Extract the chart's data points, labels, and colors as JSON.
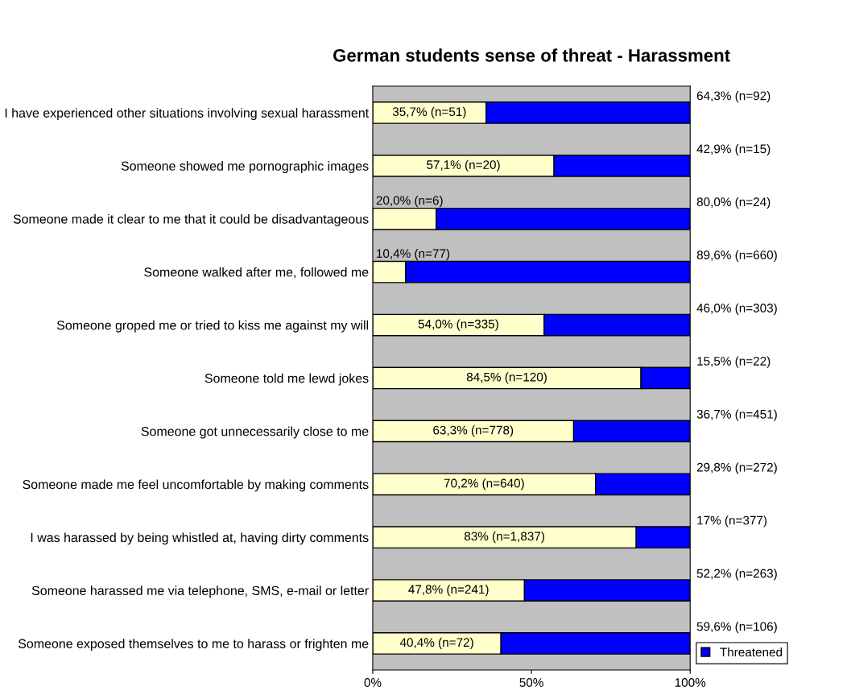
{
  "chart_data": {
    "type": "bar",
    "orientation": "horizontal",
    "stacked": true,
    "title": "German students sense of threat - Harassment",
    "categories": [
      "I have experienced other situations involving sexual harassment",
      "Someone showed me pornographic images",
      "Someone made it clear to me that it could be disadvantageous",
      "Someone walked after me, followed me",
      "Someone groped me or tried to kiss me against my will",
      "Someone told me lewd jokes",
      "Someone got unnecessarily close to me",
      "Someone made me feel uncomfortable by making comments",
      "I was harassed by being whistled at, having dirty comments",
      "Someone harassed me via telephone, SMS, e-mail or letter",
      "Someone exposed themselves to me to harass or frighten me"
    ],
    "series": [
      {
        "color": "#ffffcc",
        "values": [
          35.7,
          57.1,
          20.0,
          10.4,
          54.0,
          84.5,
          63.3,
          70.2,
          83,
          47.8,
          40.4
        ],
        "value_labels": [
          "35,7% (n=51)",
          "57,1% (n=20)",
          "20,0% (n=6)",
          "10,4% (n=77)",
          "54,0% (n=335)",
          "84,5% (n=120)",
          "63,3% (n=778)",
          "70,2% (n=640)",
          "83% (n=1,837)",
          "47,8% (n=241)",
          "40,4% (n=72)"
        ]
      },
      {
        "name": "Threatened",
        "color": "#0000ff",
        "values": [
          64.3,
          42.9,
          80.0,
          89.6,
          46.0,
          15.5,
          36.7,
          29.8,
          17,
          52.2,
          59.6
        ],
        "value_labels": [
          "64,3% (n=92)",
          "42,9% (n=15)",
          "80,0% (n=24)",
          "89,6% (n=660)",
          "46,0% (n=303)",
          "15,5% (n=22)",
          "36,7% (n=451)",
          "29,8% (n=272)",
          "17% (n=377)",
          "52,2% (n=263)",
          "59,6% (n=106)"
        ]
      }
    ],
    "xlim": [
      0,
      100
    ],
    "xticks": [
      {
        "value": 0,
        "label": "0%"
      },
      {
        "value": 50,
        "label": "50%"
      },
      {
        "value": 100,
        "label": "100%"
      }
    ],
    "grid": false,
    "legend": "bottom right"
  }
}
